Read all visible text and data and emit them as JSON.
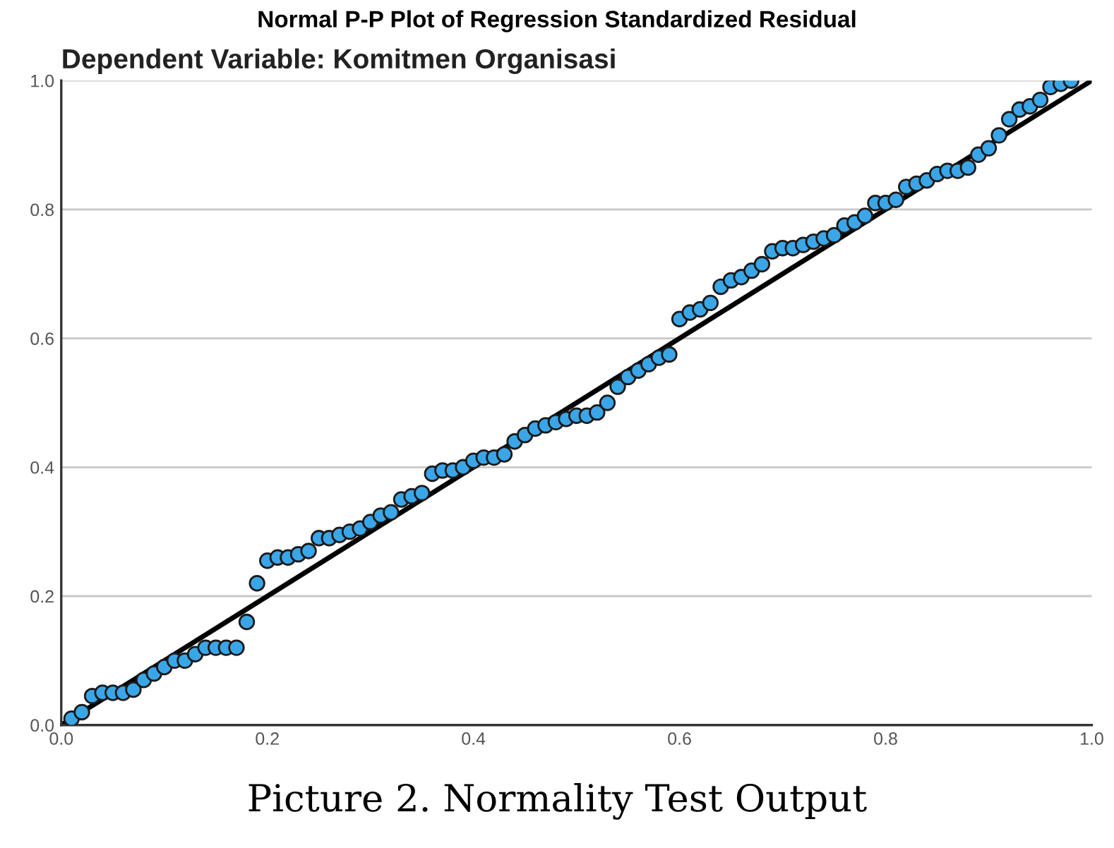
{
  "chart_data": {
    "type": "scatter",
    "title": "Normal P-P Plot of Regression Standardized Residual",
    "subtitle": "Dependent Variable: Komitmen Organisasi",
    "annotations": [
      "Picture 2. Normality Test Output"
    ],
    "xlim": [
      0,
      1
    ],
    "ylim": [
      0,
      1
    ],
    "xticks": [
      {
        "value": 0,
        "label": "0.0"
      },
      {
        "value": 0.2,
        "label": "0.2"
      },
      {
        "value": 0.4,
        "label": "0.4"
      },
      {
        "value": 0.6,
        "label": "0.6"
      },
      {
        "value": 0.8,
        "label": "0.8"
      },
      {
        "value": 1,
        "label": "1.0"
      }
    ],
    "yticks": [
      {
        "value": 0,
        "label": "0.0"
      },
      {
        "value": 0.2,
        "label": "0.2"
      },
      {
        "value": 0.4,
        "label": "0.4"
      },
      {
        "value": 0.6,
        "label": "0.6"
      },
      {
        "value": 0.8,
        "label": "0.8"
      },
      {
        "value": 1,
        "label": "1.0"
      }
    ],
    "grid": "y",
    "marker": "circle",
    "series": [
      {
        "color": "#3aa6e8",
        "x": [
          0.01,
          0.02,
          0.03,
          0.04,
          0.05,
          0.06,
          0.07,
          0.08,
          0.09,
          0.1,
          0.11,
          0.12,
          0.13,
          0.14,
          0.15,
          0.16,
          0.17,
          0.18,
          0.19,
          0.2,
          0.21,
          0.22,
          0.23,
          0.24,
          0.25,
          0.26,
          0.27,
          0.28,
          0.29,
          0.3,
          0.31,
          0.32,
          0.33,
          0.34,
          0.35,
          0.36,
          0.37,
          0.38,
          0.39,
          0.4,
          0.41,
          0.42,
          0.43,
          0.44,
          0.45,
          0.46,
          0.47,
          0.48,
          0.49,
          0.5,
          0.51,
          0.52,
          0.53,
          0.54,
          0.55,
          0.56,
          0.57,
          0.58,
          0.59,
          0.6,
          0.61,
          0.62,
          0.63,
          0.64,
          0.65,
          0.66,
          0.67,
          0.68,
          0.69,
          0.7,
          0.71,
          0.72,
          0.73,
          0.74,
          0.75,
          0.76,
          0.77,
          0.78,
          0.79,
          0.8,
          0.81,
          0.82,
          0.83,
          0.84,
          0.85,
          0.86,
          0.87,
          0.88,
          0.89,
          0.9,
          0.91,
          0.92,
          0.93,
          0.94,
          0.95,
          0.96,
          0.97,
          0.98
        ],
        "values": [
          0.01,
          0.02,
          0.045,
          0.05,
          0.05,
          0.05,
          0.055,
          0.07,
          0.08,
          0.09,
          0.1,
          0.1,
          0.11,
          0.12,
          0.12,
          0.12,
          0.12,
          0.16,
          0.22,
          0.255,
          0.26,
          0.26,
          0.265,
          0.27,
          0.29,
          0.29,
          0.295,
          0.3,
          0.305,
          0.315,
          0.325,
          0.33,
          0.35,
          0.355,
          0.36,
          0.39,
          0.395,
          0.395,
          0.4,
          0.41,
          0.415,
          0.415,
          0.42,
          0.44,
          0.45,
          0.46,
          0.465,
          0.47,
          0.475,
          0.48,
          0.48,
          0.485,
          0.5,
          0.525,
          0.54,
          0.55,
          0.56,
          0.57,
          0.575,
          0.63,
          0.64,
          0.645,
          0.655,
          0.68,
          0.69,
          0.695,
          0.705,
          0.715,
          0.735,
          0.74,
          0.74,
          0.745,
          0.75,
          0.755,
          0.76,
          0.775,
          0.78,
          0.79,
          0.81,
          0.81,
          0.815,
          0.835,
          0.84,
          0.845,
          0.855,
          0.86,
          0.86,
          0.865,
          0.885,
          0.895,
          0.915,
          0.94,
          0.955,
          0.96,
          0.97,
          0.99,
          0.995,
          1.0
        ]
      },
      {
        "type": "line",
        "color": "#000000",
        "marker": "none",
        "x": [
          0,
          1
        ],
        "values": [
          0,
          1
        ]
      }
    ]
  }
}
